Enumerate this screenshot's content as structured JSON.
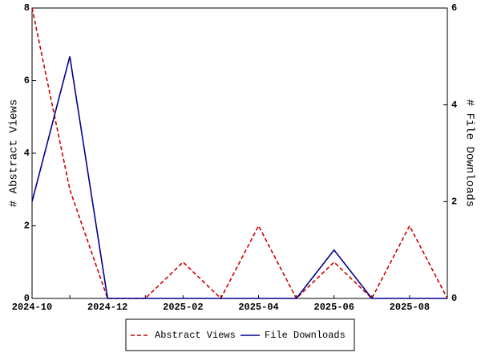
{
  "chart_data": {
    "type": "line",
    "categories": [
      "2024-10",
      null,
      "2024-12",
      null,
      "2025-02",
      null,
      "2025-04",
      null,
      "2025-06",
      null,
      "2025-08",
      null
    ],
    "series": [
      {
        "name": "Abstract Views",
        "color": "#cc0000",
        "dash": true,
        "values": [
          8,
          3,
          0,
          0,
          1,
          0,
          2,
          0,
          1,
          0,
          2,
          0
        ]
      },
      {
        "name": "File Downloads",
        "color": "#00008b",
        "axis": "y2",
        "values": [
          2,
          5,
          0,
          0,
          0,
          0,
          0,
          0,
          1,
          0,
          0,
          0
        ]
      }
    ],
    "ylabel": "# Abstract Views",
    "y2label": "# File Downloads",
    "ylim": [
      0,
      8
    ],
    "yticks": [
      0,
      2,
      4,
      6,
      8
    ],
    "y2lim": [
      0,
      6
    ],
    "y2ticks": [
      0,
      2,
      4,
      6
    ],
    "legend": "bottom"
  }
}
